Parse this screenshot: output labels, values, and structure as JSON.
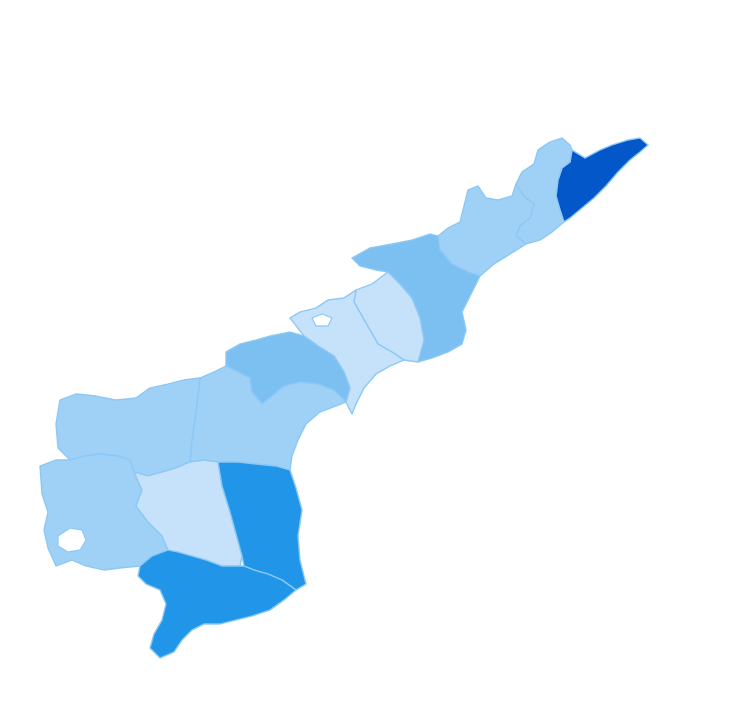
{
  "map": {
    "palette": {
      "very_light": "#c6e2fb",
      "light": "#9fd0f5",
      "medium": "#7cc0f1",
      "dark": "#2196e8",
      "darkest": "#0457c9",
      "border": "#8cc8f5",
      "background": "#ffffff"
    },
    "districts": [
      {
        "id": "srikakulam",
        "shade": "darkest"
      },
      {
        "id": "vizianagaram",
        "shade": "light"
      },
      {
        "id": "visakhapatnam",
        "shade": "light"
      },
      {
        "id": "east-godavari",
        "shade": "medium"
      },
      {
        "id": "west-godavari",
        "shade": "very_light"
      },
      {
        "id": "krishna",
        "shade": "very_light"
      },
      {
        "id": "khammam-krishna-upland",
        "shade": "medium"
      },
      {
        "id": "guntur",
        "shade": "light"
      },
      {
        "id": "kurnool",
        "shade": "light"
      },
      {
        "id": "prakasam",
        "shade": "light"
      },
      {
        "id": "anantapur",
        "shade": "light"
      },
      {
        "id": "kadapa",
        "shade": "very_light"
      },
      {
        "id": "nellore",
        "shade": "dark"
      },
      {
        "id": "chittoor",
        "shade": "dark"
      }
    ]
  }
}
